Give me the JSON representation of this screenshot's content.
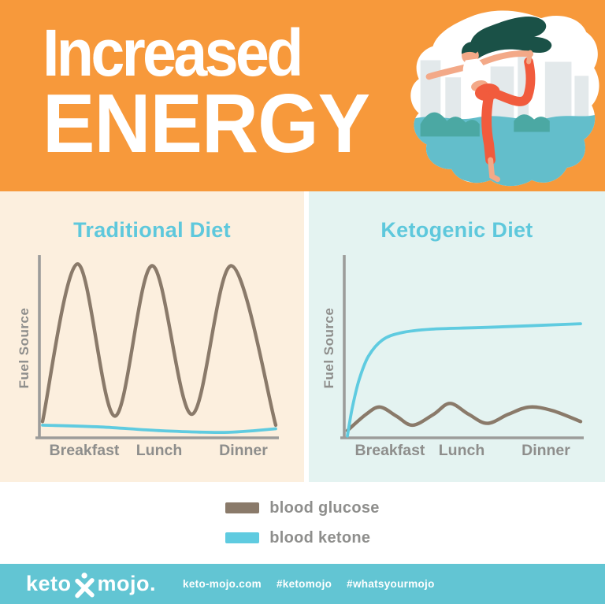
{
  "header": {
    "title_line1": "Increased",
    "title_line2": "ENERGY",
    "bg_color": "#F7993B",
    "text_color": "#FFFFFF",
    "illustration": {
      "name": "woman-yoga-dancer-pose",
      "colors": {
        "blob": "#FFFFFF",
        "buildings": "#E3E9EB",
        "water": "#63BECB",
        "bush": "#4BA8A3",
        "hair": "#1A5147",
        "skin": "#F3A988",
        "top": "#FFFFFF",
        "leggings": "#F15B3D"
      }
    }
  },
  "chart_data": [
    {
      "id": "traditional",
      "type": "line",
      "title": "Traditional Diet",
      "ylabel": "Fuel Source",
      "xlabel": "",
      "x_categories": [
        "Breakfast",
        "Lunch",
        "Dinner"
      ],
      "panel_bg": "#FCEFDE",
      "title_color": "#5EC8DC",
      "axis_color": "#9C9C9A",
      "label_color": "#8E8E8C",
      "grid": false,
      "y_units": "relative fuel level (0-100)",
      "series": [
        {
          "name": "blood glucose",
          "color": "#8A7A6A",
          "points": [
            [
              0,
              9
            ],
            [
              15,
              96
            ],
            [
              31,
              12
            ],
            [
              47,
              95
            ],
            [
              64,
              13
            ],
            [
              81,
              95
            ],
            [
              100,
              7
            ]
          ]
        },
        {
          "name": "blood ketone",
          "color": "#5FCBE0",
          "points": [
            [
              0,
              7
            ],
            [
              25,
              6
            ],
            [
              50,
              4
            ],
            [
              78,
              3
            ],
            [
              100,
              5
            ]
          ]
        }
      ]
    },
    {
      "id": "ketogenic",
      "type": "line",
      "title": "Ketogenic Diet",
      "ylabel": "Fuel Source",
      "xlabel": "",
      "x_categories": [
        "Breakfast",
        "Lunch",
        "Dinner"
      ],
      "panel_bg": "#E4F3F1",
      "title_color": "#5EC8DC",
      "axis_color": "#9C9C9A",
      "label_color": "#8E8E8C",
      "grid": false,
      "y_units": "relative fuel level (0-100)",
      "series": [
        {
          "name": "blood glucose",
          "color": "#8A7A6A",
          "points": [
            [
              0,
              4
            ],
            [
              8,
              13
            ],
            [
              14,
              17
            ],
            [
              21,
              12
            ],
            [
              28,
              7
            ],
            [
              37,
              13
            ],
            [
              44,
              19
            ],
            [
              52,
              13
            ],
            [
              60,
              8
            ],
            [
              69,
              13
            ],
            [
              78,
              17
            ],
            [
              88,
              15
            ],
            [
              100,
              9
            ]
          ]
        },
        {
          "name": "blood ketone",
          "color": "#5FCBE0",
          "points": [
            [
              0,
              1
            ],
            [
              2,
              16
            ],
            [
              5,
              32
            ],
            [
              9,
              45
            ],
            [
              15,
              54
            ],
            [
              23,
              58
            ],
            [
              36,
              60
            ],
            [
              60,
              61
            ],
            [
              100,
              63
            ]
          ]
        }
      ]
    }
  ],
  "legend": {
    "items": [
      {
        "label": "blood glucose",
        "color": "#8A7A6A"
      },
      {
        "label": "blood ketone",
        "color": "#5FCBE0"
      }
    ]
  },
  "footer": {
    "bg_color": "#62C5D3",
    "logo": {
      "left": "keto",
      "right": "mojo.",
      "icon": "x-person-icon"
    },
    "website": "keto-mojo.com",
    "hashtags": [
      "#ketomojo",
      "#whatsyourmojo"
    ]
  }
}
